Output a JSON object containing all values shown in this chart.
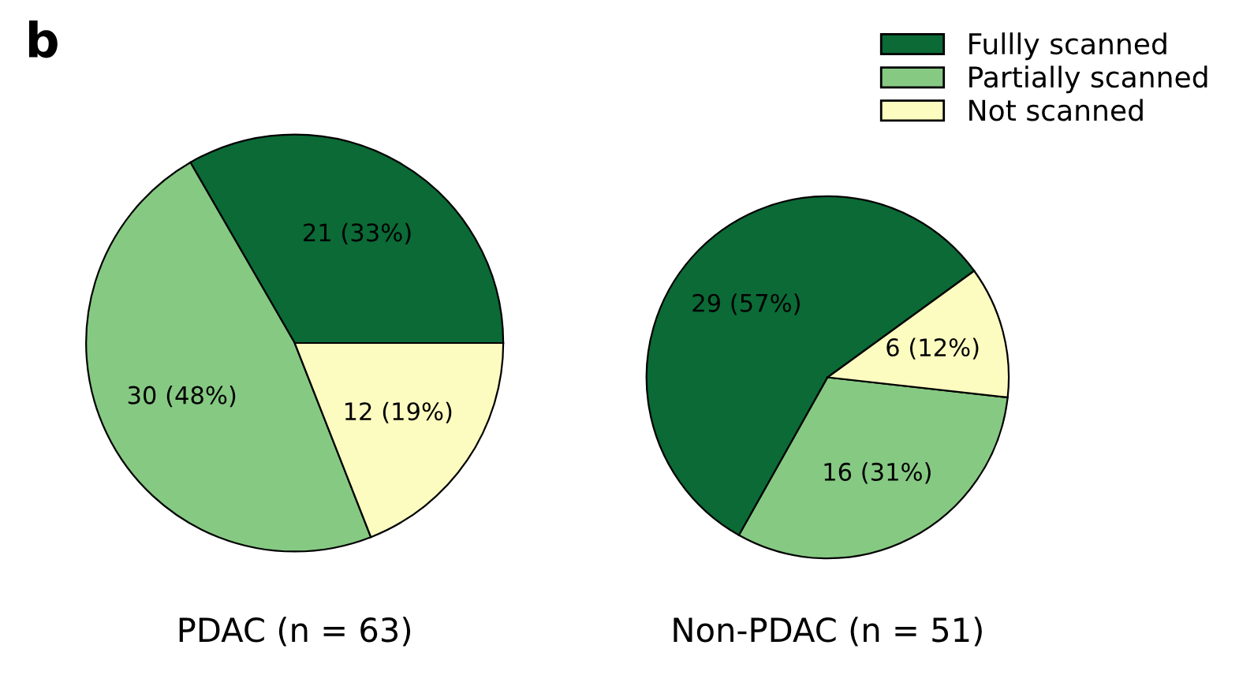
{
  "chart_data": [
    {
      "type": "pie",
      "xlabel": "PDAC (n = 63)",
      "annotations": [
        "b"
      ],
      "categories": [
        "Fullly scanned",
        "Partially scanned",
        "Not scanned"
      ],
      "values": [
        21,
        30,
        12
      ],
      "value_labels": [
        "21 (33%)",
        "30 (48%)",
        "12 (19%)"
      ],
      "colors": [
        "#0b6a36",
        "#86c983",
        "#fdfcc0"
      ],
      "legend": "top right"
    },
    {
      "type": "pie",
      "xlabel": "Non-PDAC (n = 51)",
      "categories": [
        null,
        null,
        null
      ],
      "values": [
        29,
        16,
        6
      ],
      "value_labels": [
        "29 (57%)",
        "16 (31%)",
        "6 (12%)"
      ],
      "colors": [
        "#0b6a36",
        "#86c983",
        "#fdfcc0"
      ]
    }
  ]
}
